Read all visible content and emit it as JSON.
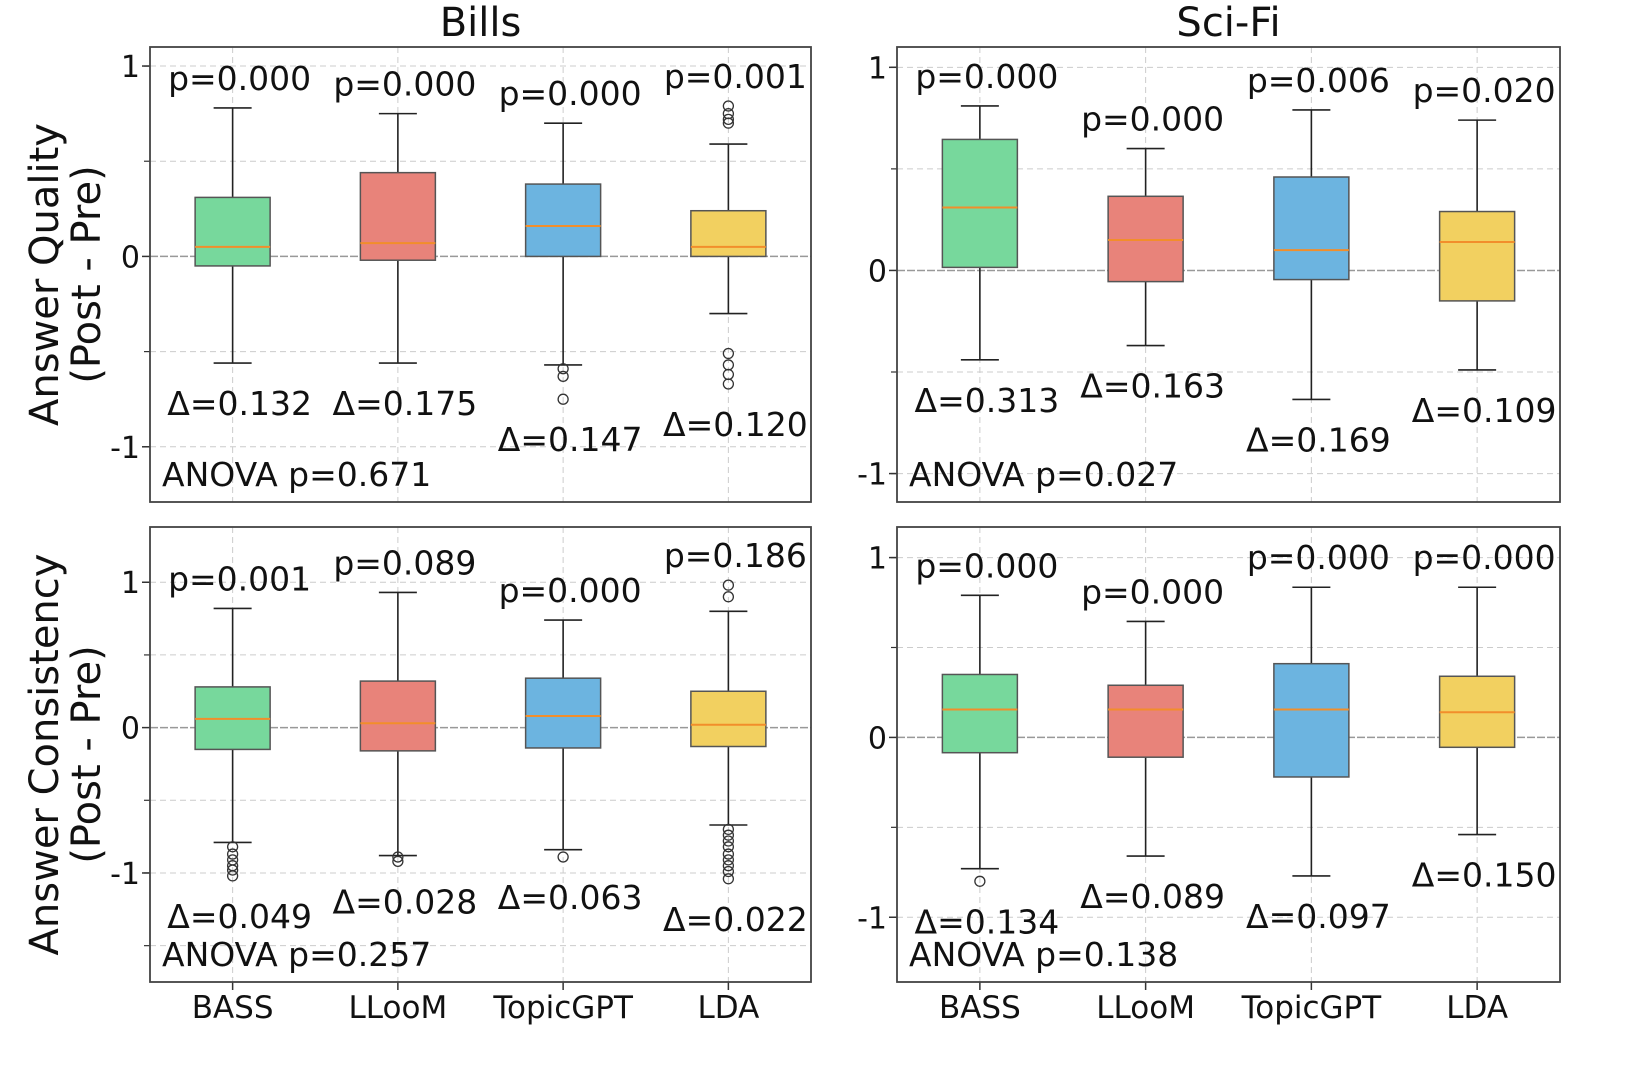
{
  "colors": {
    "BASS": "#77d89c",
    "LLooM": "#e8837a",
    "TopicGPT": "#6cb4e0",
    "LDA": "#f2d060",
    "median": "#f28e2b",
    "grid": "#cccccc",
    "zero_line": "#999999"
  },
  "chart_data": [
    {
      "type": "box",
      "title": "Bills",
      "ylabel": [
        "Answer Quality",
        "(Post - Pre)"
      ],
      "categories": [
        "BASS",
        "LLooM",
        "TopicGPT",
        "LDA"
      ],
      "yticks": [
        1,
        0,
        -1
      ],
      "ylim": [
        -1.29,
        1.1
      ],
      "grid": true,
      "anova": "ANOVA p=0.671",
      "boxes": [
        {
          "whislo": -0.56,
          "q1": -0.05,
          "med": 0.05,
          "q3": 0.31,
          "whishi": 0.78,
          "fliers": [],
          "p": "p=0.000",
          "delta": "Δ=0.132"
        },
        {
          "whislo": -0.56,
          "q1": -0.02,
          "med": 0.07,
          "q3": 0.44,
          "whishi": 0.75,
          "fliers": [],
          "p": "p=0.000",
          "delta": "Δ=0.175"
        },
        {
          "whislo": -0.57,
          "q1": 0.0,
          "med": 0.16,
          "q3": 0.38,
          "whishi": 0.7,
          "fliers": [
            -0.59,
            -0.63,
            -0.75
          ],
          "p": "p=0.000",
          "delta": "Δ=0.147"
        },
        {
          "whislo": -0.3,
          "q1": 0.0,
          "med": 0.05,
          "q3": 0.24,
          "whishi": 0.59,
          "fliers": [
            0.79,
            0.75,
            0.72,
            0.7,
            -0.51,
            -0.57,
            -0.62,
            -0.67
          ],
          "p": "p=0.001",
          "delta": "Δ=0.120"
        }
      ]
    },
    {
      "type": "box",
      "title": "Sci-Fi",
      "ylabel": [],
      "categories": [
        "BASS",
        "LLooM",
        "TopicGPT",
        "LDA"
      ],
      "yticks": [
        1,
        0,
        -1
      ],
      "ylim": [
        -1.14,
        1.1
      ],
      "grid": true,
      "anova": "ANOVA p=0.027",
      "boxes": [
        {
          "whislo": -0.44,
          "q1": 0.015,
          "med": 0.31,
          "q3": 0.645,
          "whishi": 0.81,
          "fliers": [],
          "p": "p=0.000",
          "delta": "Δ=0.313"
        },
        {
          "whislo": -0.37,
          "q1": -0.055,
          "med": 0.15,
          "q3": 0.365,
          "whishi": 0.6,
          "fliers": [],
          "p": "p=0.000",
          "delta": "Δ=0.163"
        },
        {
          "whislo": -0.635,
          "q1": -0.045,
          "med": 0.1,
          "q3": 0.46,
          "whishi": 0.79,
          "fliers": [],
          "p": "p=0.006",
          "delta": "Δ=0.169"
        },
        {
          "whislo": -0.49,
          "q1": -0.15,
          "med": 0.14,
          "q3": 0.29,
          "whishi": 0.74,
          "fliers": [],
          "p": "p=0.020",
          "delta": "Δ=0.109"
        }
      ]
    },
    {
      "type": "box",
      "title": "",
      "ylabel": [
        "Answer Consistency",
        "(Post - Pre)"
      ],
      "categories": [
        "BASS",
        "LLooM",
        "TopicGPT",
        "LDA"
      ],
      "yticks": [
        1,
        0,
        -1
      ],
      "ylim": [
        -1.75,
        1.38
      ],
      "grid": true,
      "anova": "ANOVA p=0.257",
      "boxes": [
        {
          "whislo": -0.79,
          "q1": -0.15,
          "med": 0.06,
          "q3": 0.28,
          "whishi": 0.82,
          "fliers": [
            -0.82,
            -0.87,
            -0.91,
            -0.95,
            -0.98,
            -1.02
          ],
          "p": "p=0.001",
          "delta": "Δ=0.049"
        },
        {
          "whislo": -0.88,
          "q1": -0.16,
          "med": 0.03,
          "q3": 0.32,
          "whishi": 0.93,
          "fliers": [
            -0.89,
            -0.92
          ],
          "p": "p=0.089",
          "delta": "Δ=0.028"
        },
        {
          "whislo": -0.84,
          "q1": -0.14,
          "med": 0.08,
          "q3": 0.34,
          "whishi": 0.74,
          "fliers": [
            -0.89
          ],
          "p": "p=0.000",
          "delta": "Δ=0.063"
        },
        {
          "whislo": -0.67,
          "q1": -0.13,
          "med": 0.02,
          "q3": 0.25,
          "whishi": 0.8,
          "fliers": [
            0.98,
            0.9,
            -0.7,
            -0.74,
            -0.78,
            -0.82,
            -0.87,
            -0.91,
            -0.95,
            -0.99,
            -1.04
          ],
          "p": "p=0.186",
          "delta": "Δ=0.022"
        }
      ]
    },
    {
      "type": "box",
      "title": "",
      "ylabel": [],
      "categories": [
        "BASS",
        "LLooM",
        "TopicGPT",
        "LDA"
      ],
      "yticks": [
        1,
        0,
        -1
      ],
      "ylim": [
        -1.36,
        1.17
      ],
      "grid": true,
      "anova": "ANOVA p=0.138",
      "boxes": [
        {
          "whislo": -0.73,
          "q1": -0.085,
          "med": 0.155,
          "q3": 0.35,
          "whishi": 0.79,
          "fliers": [
            -0.8
          ],
          "p": "p=0.000",
          "delta": "Δ=0.134"
        },
        {
          "whislo": -0.66,
          "q1": -0.11,
          "med": 0.155,
          "q3": 0.29,
          "whishi": 0.645,
          "fliers": [],
          "p": "p=0.000",
          "delta": "Δ=0.089"
        },
        {
          "whislo": -0.77,
          "q1": -0.22,
          "med": 0.155,
          "q3": 0.41,
          "whishi": 0.835,
          "fliers": [],
          "p": "p=0.000",
          "delta": "Δ=0.097"
        },
        {
          "whislo": -0.54,
          "q1": -0.055,
          "med": 0.14,
          "q3": 0.34,
          "whishi": 0.835,
          "fliers": [],
          "p": "p=0.000",
          "delta": "Δ=0.150"
        }
      ]
    }
  ]
}
